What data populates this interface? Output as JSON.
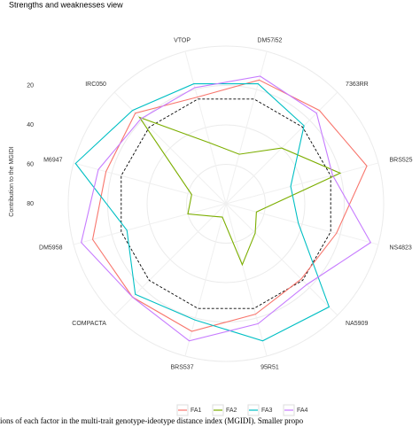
{
  "chart_data": {
    "type": "radar",
    "title": "Strengths and weaknesses view",
    "axis_label": "Contribution to the MGIDI",
    "categories": [
      "VTOP",
      "DM57i52",
      "7363RR",
      "BRS525",
      "NS4823",
      "NA5909",
      "95R51",
      "BRS537",
      "COMPACTA",
      "DM5958",
      "M6947",
      "IRC050"
    ],
    "rlim": [
      80,
      0
    ],
    "rticks": [
      20,
      40,
      60,
      80
    ],
    "grid": true,
    "threshold": 25,
    "legend": "bottom",
    "series": [
      {
        "name": "FA1",
        "color": "#F8766D",
        "values": [
          24,
          15,
          13,
          6,
          22,
          26,
          22,
          13,
          13,
          10,
          17,
          15
        ]
      },
      {
        "name": "FA2",
        "color": "#7CAE00",
        "values": [
          48,
          54,
          40,
          20,
          64,
          59,
          48,
          73,
          71,
          60,
          62,
          18
        ]
      },
      {
        "name": "FA3",
        "color": "#00BFC4",
        "values": [
          17,
          17,
          24,
          46,
          42,
          6,
          8,
          19,
          15,
          28,
          1,
          13
        ]
      },
      {
        "name": "FA4",
        "color": "#C77CFF",
        "values": [
          19,
          13,
          15,
          24,
          4,
          22,
          17,
          8,
          13,
          4,
          13,
          19
        ]
      }
    ],
    "caption": "ions of each factor in the multi-trait genotype-ideotype distance index (MGIDI). Smaller propo"
  }
}
